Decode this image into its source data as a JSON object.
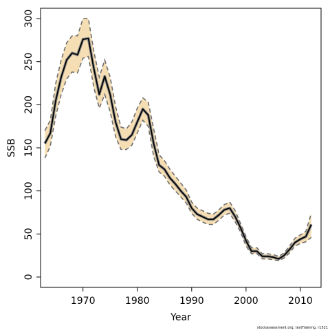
{
  "chart_data": {
    "type": "line",
    "title": "",
    "xlabel": "Year",
    "ylabel": "SSB",
    "footnote": "stockassessment.org, testTraining, r1521",
    "xlim": [
      1962.2,
      2013.8
    ],
    "ylim": [
      -12,
      312
    ],
    "xticks": [
      1970,
      1980,
      1990,
      2000,
      2010
    ],
    "yticks": [
      0,
      50,
      100,
      150,
      200,
      250,
      300
    ],
    "grid": false,
    "colors": {
      "band": "#f5deb3",
      "estimate": "#000000",
      "estimate_halo": "#8a8a8a",
      "bounds": "#6e6e6e",
      "axes": "#000000"
    },
    "years": [
      1963,
      1964,
      1965,
      1966,
      1967,
      1968,
      1969,
      1970,
      1971,
      1972,
      1973,
      1974,
      1975,
      1976,
      1977,
      1978,
      1979,
      1980,
      1981,
      1982,
      1983,
      1984,
      1985,
      1986,
      1987,
      1988,
      1989,
      1990,
      1991,
      1992,
      1993,
      1994,
      1995,
      1996,
      1997,
      1998,
      1999,
      2000,
      2001,
      2002,
      2003,
      2004,
      2005,
      2006,
      2007,
      2008,
      2009,
      2010,
      2011,
      2012
    ],
    "series": [
      {
        "name": "estimate",
        "values": [
          155,
          167,
          205,
          232,
          252,
          260,
          258,
          276,
          277,
          242,
          212,
          233,
          212,
          180,
          160,
          159,
          165,
          180,
          195,
          188,
          155,
          130,
          125,
          115,
          108,
          100,
          93,
          80,
          73,
          70,
          67,
          67,
          72,
          78,
          80,
          70,
          57,
          42,
          30,
          30,
          24,
          24,
          23,
          21,
          25,
          32,
          40,
          44,
          47,
          61
        ]
      },
      {
        "name": "lower",
        "values": [
          138,
          152,
          187,
          212,
          230,
          238,
          237,
          254,
          256,
          220,
          196,
          212,
          192,
          163,
          148,
          148,
          153,
          167,
          182,
          175,
          140,
          122,
          117,
          107,
          100,
          93,
          86,
          74,
          67,
          64,
          61,
          61,
          66,
          72,
          74,
          64,
          52,
          36,
          27,
          27,
          21,
          21,
          20,
          19,
          22,
          28,
          36,
          39,
          41,
          46
        ]
      },
      {
        "name": "upper",
        "values": [
          170,
          182,
          225,
          252,
          272,
          280,
          280,
          300,
          300,
          262,
          232,
          252,
          232,
          198,
          174,
          172,
          180,
          196,
          208,
          203,
          172,
          142,
          135,
          125,
          117,
          109,
          101,
          87,
          80,
          77,
          74,
          73,
          78,
          84,
          87,
          77,
          62,
          47,
          34,
          34,
          27,
          27,
          26,
          24,
          28,
          36,
          45,
          49,
          53,
          74
        ]
      }
    ]
  }
}
